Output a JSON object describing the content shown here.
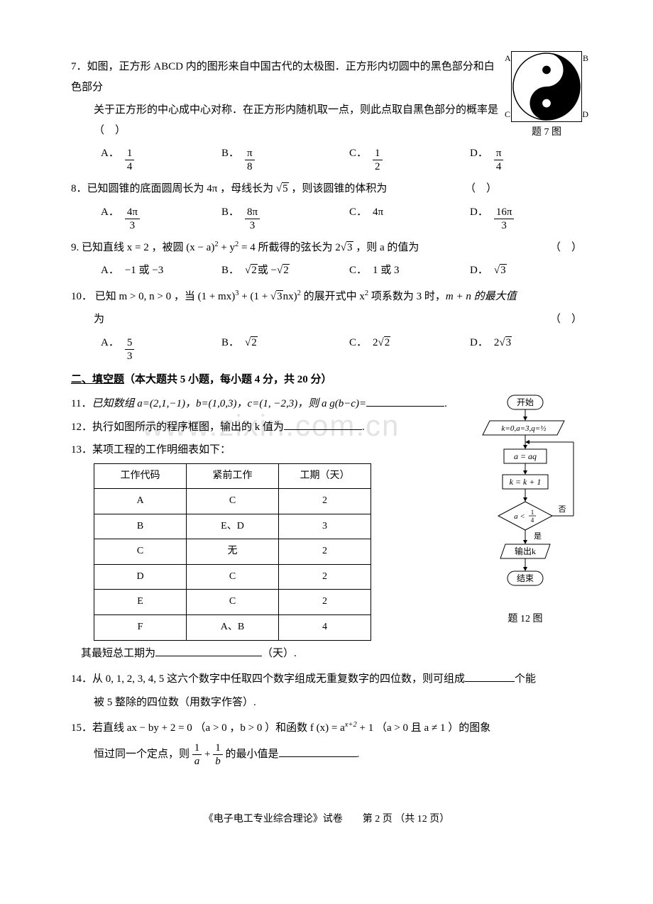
{
  "watermark": "www.zixin.com.cn",
  "questions": {
    "q7": {
      "num": "7．",
      "text_l1": "如图，正方形 ABCD 内的图形来自中国古代的太极图．正方形内切圆中的黑色部分和白色部分",
      "text_l2": "关于正方形的中心成中心对称．在正方形内随机取一点，则此点取自黑色部分的概率是（　）",
      "figure_caption": "题 7 图",
      "figure_labels": {
        "A": "A",
        "B": "B",
        "C": "C",
        "D": "D"
      },
      "choices": {
        "A": {
          "num": "1",
          "den": "4"
        },
        "B": {
          "num": "π",
          "den": "8"
        },
        "C": {
          "num": "1",
          "den": "2"
        },
        "D": {
          "num": "π",
          "den": "4"
        }
      }
    },
    "q8": {
      "num": "8．",
      "text": "已知圆锥的底面圆周长为 4π ，母线长为",
      "sqrt_val": "5",
      "text_after": "，则该圆锥的体积为",
      "choices": {
        "A": {
          "num": "4π",
          "den": "3"
        },
        "B": {
          "num": "8π",
          "den": "3"
        },
        "C": "4π",
        "D": {
          "num": "16π",
          "den": "3"
        }
      }
    },
    "q9": {
      "num": "9.",
      "text_pre": "已知直线 x = 2 ，被圆 (x − a)",
      "sup1": "2",
      "text_mid1": " + y",
      "sup2": "2",
      "text_mid2": " = 4 所截得的弦长为 2",
      "sqrt_val": "3",
      "text_after": " ，则 a 的值为",
      "choices": {
        "A": "−1 或 −3",
        "B_pre": "",
        "B_sqrt1": "2",
        "B_mid": " 或 −",
        "B_sqrt2": "2",
        "C": "1 或 3",
        "D_sqrt": "3"
      }
    },
    "q10": {
      "num": "10．",
      "text_pre": "已知 m > 0, n > 0 ，当 (1 + mx)",
      "sup1": "3",
      "text_mid1": " + (1 + ",
      "sqrt_val": "3",
      "text_mid2": "nx)",
      "sup2": "2",
      "text_mid3": " 的展开式中 x",
      "sup3": "2",
      "text_mid4": " 项系数为 3 时，",
      "text_mid5": "m + n 的最大值",
      "text_l2": "为",
      "choices": {
        "A": {
          "num": "5",
          "den": "3"
        },
        "B_sqrt": "2",
        "C_pre": "2",
        "C_sqrt": "2",
        "D_pre": "2",
        "D_sqrt": "3"
      }
    }
  },
  "section2": {
    "title_underline": "二、填空题",
    "title_rest": "（本大题共 5 小题，每小题 4 分，共 20 分）"
  },
  "q11": {
    "num": "11．",
    "text": "已知数组 a=(2,1,−1)，b=(1,0,3)，c=(1, −2,3)，则  a g(b−c)=",
    "after": "."
  },
  "q12": {
    "num": "12．",
    "text": "执行如图所示的程序框图，输出的 k 值为",
    "after": "."
  },
  "q13": {
    "num": "13．",
    "text": "某项工程的工作明细表如下：",
    "table": {
      "headers": [
        "工作代码",
        "紧前工作",
        "工期（天）"
      ],
      "rows": [
        [
          "A",
          "C",
          "2"
        ],
        [
          "B",
          "E、D",
          "3"
        ],
        [
          "C",
          "无",
          "2"
        ],
        [
          "D",
          "C",
          "2"
        ],
        [
          "E",
          "C",
          "2"
        ],
        [
          "F",
          "A、B",
          "4"
        ]
      ]
    },
    "after_text1": "其最短总工期为",
    "after_text2": "（天）."
  },
  "q14": {
    "num": "14．",
    "text_l1_pre": "从 0, 1, 2, 3, 4, 5 这六个数字中任取四个数字组成无重复数字的四位数，则可组成",
    "text_l1_post": "个能",
    "text_l2": "被 5 整除的四位数（用数字作答）."
  },
  "q15": {
    "num": "15．",
    "text_l1_pre": "若直线 ax − by + 2 = 0 （a > 0 ，b > 0 ）和函数 f (x) = a",
    "sup": "x+2",
    "text_l1_post": " + 1 （a > 0 且 a ≠ 1 ）的图象",
    "text_l2_pre": "恒过同一个定点，则 ",
    "frac1": {
      "num": "1",
      "den": "a"
    },
    "plus": " + ",
    "frac2": {
      "num": "1",
      "den": "b"
    },
    "text_l2_post": " 的最小值是",
    "after": "."
  },
  "flowchart": {
    "start": "开始",
    "init": "k=0,a=3,q=½",
    "step1": "a = aq",
    "step2": "k = k + 1",
    "cond_left": "a <",
    "cond_frac_num": "1",
    "cond_frac_den": "4",
    "no": "否",
    "yes": "是",
    "output": "输出k",
    "end": "结束",
    "caption": "题 12 图"
  },
  "footer": {
    "left": "《电子电工专业综合理论》试卷",
    "right": "第 2 页 （共 12 页）"
  },
  "colors": {
    "text": "#000000",
    "background": "#ffffff",
    "watermark": "rgba(200,200,200,0.5)",
    "border": "#000000"
  }
}
